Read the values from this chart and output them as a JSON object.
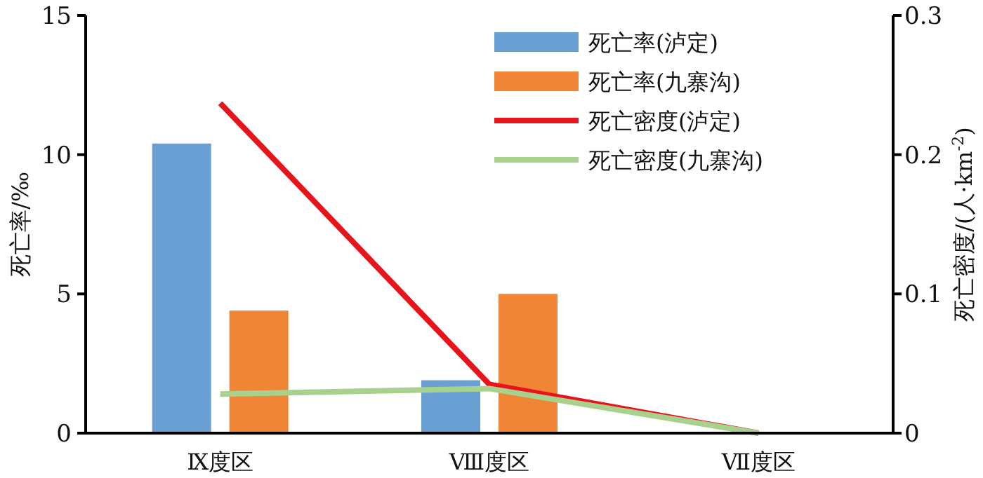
{
  "chart_data": {
    "type": "bar",
    "categories": [
      "Ⅸ度区",
      "Ⅷ度区",
      "Ⅶ度区"
    ],
    "ylabel": "死亡率/‰",
    "y2label": "死亡密度/(人·km$^{-2}$)",
    "ylim": [
      0,
      15
    ],
    "yticks": [
      0,
      5,
      10,
      15
    ],
    "y2lim": [
      0,
      0.3
    ],
    "y2ticks": [
      0,
      0.1,
      0.2,
      0.3
    ],
    "legend": "top right",
    "grid": false,
    "series": [
      {
        "name": "死亡率(泸定)",
        "color": "#6a9fd4",
        "values": [
          10.4,
          1.9,
          null
        ]
      },
      {
        "name": "死亡率(九寨沟)",
        "color": "#ef8535",
        "values": [
          4.4,
          5.0,
          null
        ]
      },
      {
        "name": "死亡密度(泸定)",
        "type": "line",
        "axis": "y2",
        "color": "#e8141b",
        "values": [
          0.237,
          0.035,
          0
        ]
      },
      {
        "name": "死亡密度(九寨沟)",
        "type": "line",
        "axis": "y2",
        "color": "#a9d18e",
        "values": [
          0.028,
          0.032,
          0
        ]
      }
    ]
  }
}
